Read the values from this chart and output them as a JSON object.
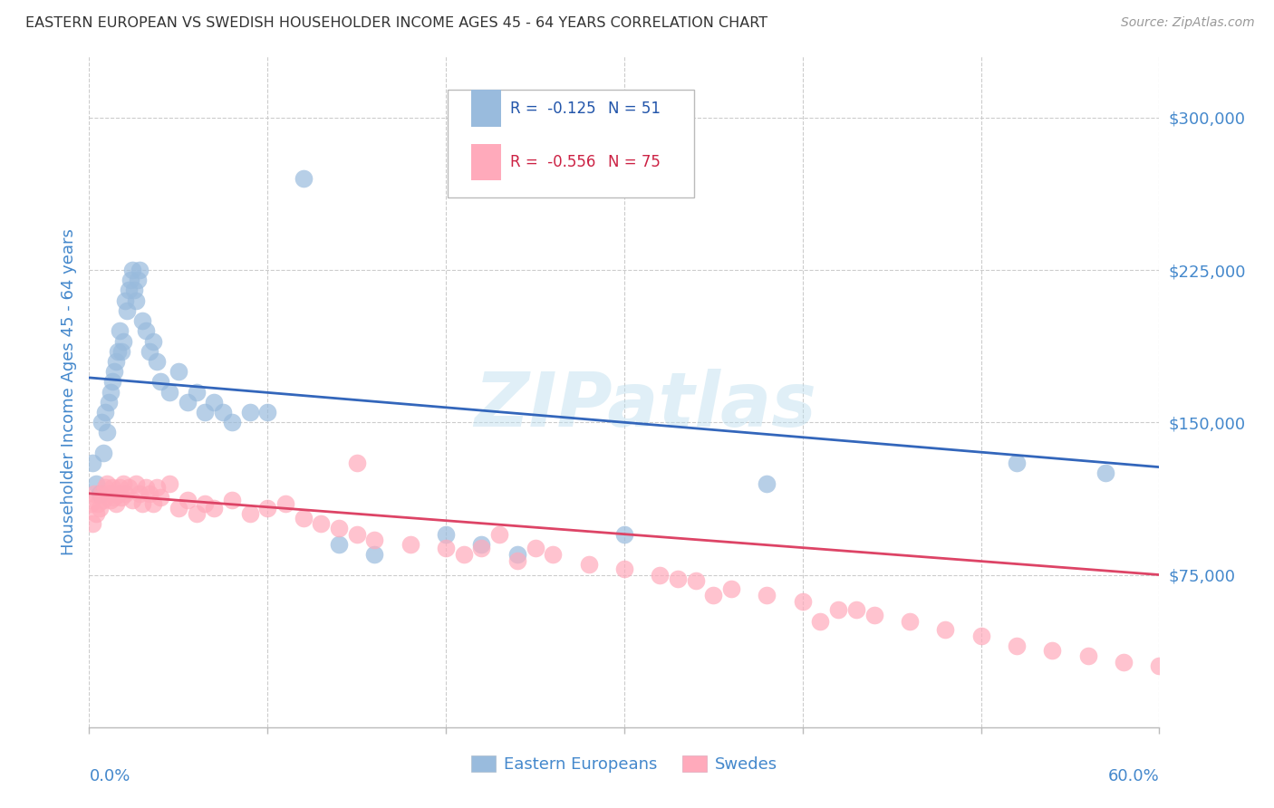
{
  "title": "EASTERN EUROPEAN VS SWEDISH HOUSEHOLDER INCOME AGES 45 - 64 YEARS CORRELATION CHART",
  "source": "Source: ZipAtlas.com",
  "ylabel": "Householder Income Ages 45 - 64 years",
  "ytick_values": [
    75000,
    150000,
    225000,
    300000
  ],
  "xlim": [
    0.0,
    0.6
  ],
  "ylim": [
    0,
    330000
  ],
  "watermark": "ZIPatlas",
  "legend1_R": "-0.125",
  "legend1_N": "51",
  "legend2_R": "-0.556",
  "legend2_N": "75",
  "color_blue": "#99BBDD",
  "color_pink": "#FFAABB",
  "color_blue_line": "#3366BB",
  "color_pink_line": "#DD4466",
  "color_axis_label": "#4488CC",
  "blue_x": [
    0.002,
    0.004,
    0.006,
    0.007,
    0.008,
    0.009,
    0.01,
    0.011,
    0.012,
    0.013,
    0.014,
    0.015,
    0.016,
    0.017,
    0.018,
    0.019,
    0.02,
    0.021,
    0.022,
    0.023,
    0.024,
    0.025,
    0.026,
    0.027,
    0.028,
    0.03,
    0.032,
    0.034,
    0.036,
    0.038,
    0.04,
    0.045,
    0.05,
    0.055,
    0.06,
    0.065,
    0.07,
    0.075,
    0.08,
    0.09,
    0.1,
    0.12,
    0.14,
    0.16,
    0.2,
    0.22,
    0.24,
    0.3,
    0.38,
    0.52,
    0.57
  ],
  "blue_y": [
    130000,
    120000,
    115000,
    150000,
    135000,
    155000,
    145000,
    160000,
    165000,
    170000,
    175000,
    180000,
    185000,
    195000,
    185000,
    190000,
    210000,
    205000,
    215000,
    220000,
    225000,
    215000,
    210000,
    220000,
    225000,
    200000,
    195000,
    185000,
    190000,
    180000,
    170000,
    165000,
    175000,
    160000,
    165000,
    155000,
    160000,
    155000,
    150000,
    155000,
    155000,
    270000,
    90000,
    85000,
    95000,
    90000,
    85000,
    95000,
    120000,
    130000,
    125000
  ],
  "pink_x": [
    0.001,
    0.002,
    0.003,
    0.004,
    0.005,
    0.006,
    0.007,
    0.008,
    0.009,
    0.01,
    0.011,
    0.012,
    0.013,
    0.014,
    0.015,
    0.016,
    0.017,
    0.018,
    0.019,
    0.02,
    0.022,
    0.024,
    0.026,
    0.028,
    0.03,
    0.032,
    0.034,
    0.036,
    0.038,
    0.04,
    0.045,
    0.05,
    0.055,
    0.06,
    0.065,
    0.07,
    0.08,
    0.09,
    0.1,
    0.11,
    0.12,
    0.13,
    0.14,
    0.15,
    0.16,
    0.18,
    0.2,
    0.21,
    0.22,
    0.24,
    0.26,
    0.28,
    0.3,
    0.32,
    0.34,
    0.36,
    0.38,
    0.4,
    0.42,
    0.44,
    0.46,
    0.48,
    0.5,
    0.52,
    0.54,
    0.56,
    0.58,
    0.6,
    0.35,
    0.43,
    0.41,
    0.15,
    0.23,
    0.25,
    0.33
  ],
  "pink_y": [
    110000,
    100000,
    115000,
    105000,
    110000,
    108000,
    115000,
    112000,
    118000,
    120000,
    115000,
    112000,
    118000,
    113000,
    110000,
    115000,
    118000,
    113000,
    120000,
    115000,
    118000,
    112000,
    120000,
    115000,
    110000,
    118000,
    115000,
    110000,
    118000,
    113000,
    120000,
    108000,
    112000,
    105000,
    110000,
    108000,
    112000,
    105000,
    108000,
    110000,
    103000,
    100000,
    98000,
    95000,
    92000,
    90000,
    88000,
    85000,
    88000,
    82000,
    85000,
    80000,
    78000,
    75000,
    72000,
    68000,
    65000,
    62000,
    58000,
    55000,
    52000,
    48000,
    45000,
    40000,
    38000,
    35000,
    32000,
    30000,
    65000,
    58000,
    52000,
    130000,
    95000,
    88000,
    73000
  ]
}
